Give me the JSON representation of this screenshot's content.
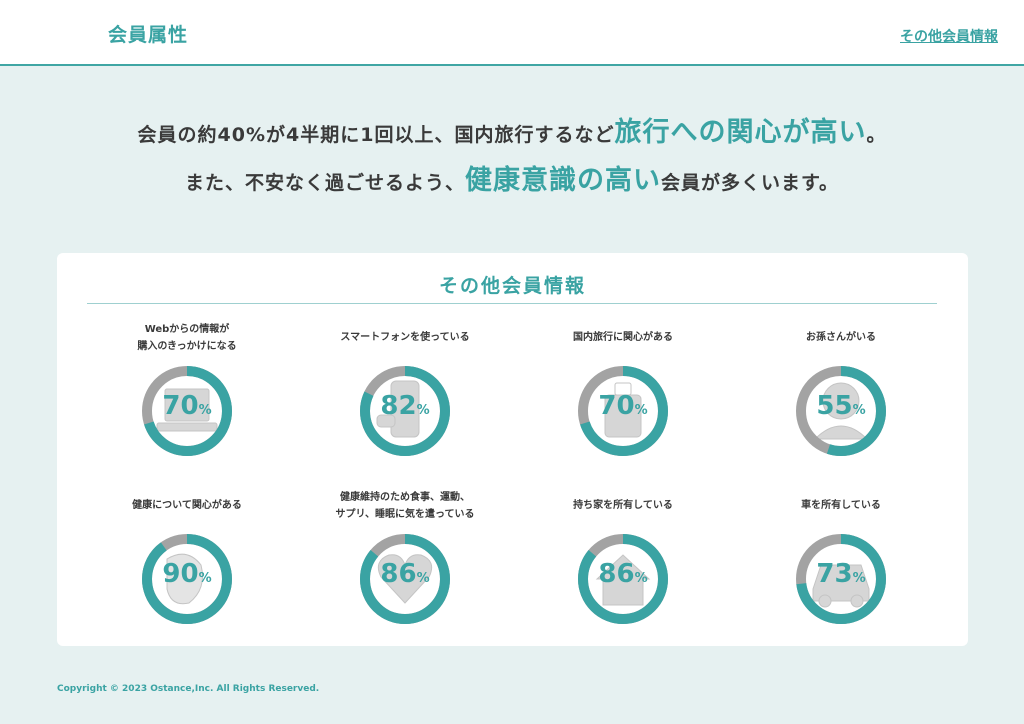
{
  "header": {
    "title": "会員属性",
    "link": "その他会員情報"
  },
  "headline": {
    "line1_prefix": "会員の約40%が4半期に1回以上、国内旅行するなど",
    "line1_highlight": "旅行への関心が高い",
    "line1_suffix": "。",
    "line2_prefix": "また、不安なく過ごせるよう、",
    "line2_highlight": "健康意識の高い",
    "line2_suffix": "会員が多くいます。"
  },
  "card": {
    "title": "その他会員情報",
    "items": [
      {
        "label": "Webからの情報が\n購入のきっかけになる",
        "value": 70,
        "unit": "%",
        "icon": "laptop-icon"
      },
      {
        "label": "スマートフォンを使っている",
        "value": 82,
        "unit": "%",
        "icon": "smartphone-icon"
      },
      {
        "label": "国内旅行に関心がある",
        "value": 70,
        "unit": "%",
        "icon": "suitcase-icon"
      },
      {
        "label": "お孫さんがいる",
        "value": 55,
        "unit": "%",
        "icon": "baby-icon"
      },
      {
        "label": "健康について関心がある",
        "value": 90,
        "unit": "%",
        "icon": "health-icon"
      },
      {
        "label": "健康維持のため食事、運動、\nサプリ、睡眠に気を遣っている",
        "value": 86,
        "unit": "%",
        "icon": "heart-icon"
      },
      {
        "label": "持ち家を所有している",
        "value": 86,
        "unit": "%",
        "icon": "house-icon"
      },
      {
        "label": "車を所有している",
        "value": 73,
        "unit": "%",
        "icon": "car-icon"
      }
    ]
  },
  "colors": {
    "accent": "#3aa3a3",
    "track": "#a3a3a3",
    "background": "#e6f1f1"
  },
  "footer": {
    "copyright": "Copyright © 2023 Ostance,Inc. All Rights Reserved."
  }
}
